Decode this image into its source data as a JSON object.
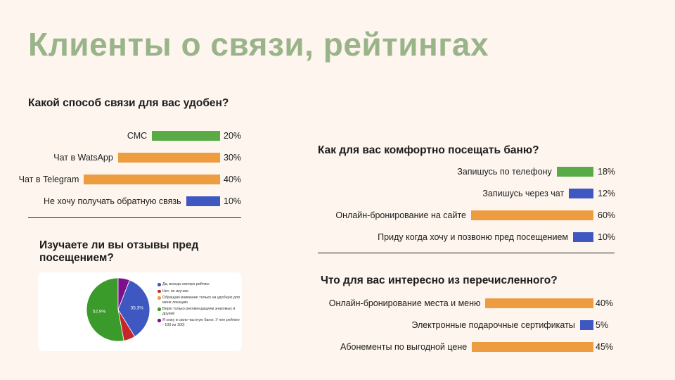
{
  "page": {
    "title": "Клиенты о связи, рейтингах"
  },
  "colors": {
    "green": "#58ab45",
    "orange": "#ed9c40",
    "blue": "#3f57c1",
    "red": "#c5262a",
    "purple": "#7c0f8c",
    "pie_green": "#3a9a2a",
    "title": "#9ab48a"
  },
  "chart_data": [
    {
      "type": "bar",
      "title": "Какой способ связи для вас удобен?",
      "categories": [
        "СМС",
        "Чат в WatsApp",
        "Чат в Telegram",
        "Не хочу получать обратную связь"
      ],
      "values": [
        20,
        30,
        40,
        10
      ],
      "value_labels": [
        "20%",
        "30%",
        "40%",
        "10%"
      ],
      "bar_colors": [
        "#58ab45",
        "#ed9c40",
        "#ed9c40",
        "#3f57c1"
      ],
      "xlim": [
        0,
        100
      ]
    },
    {
      "type": "pie",
      "title": "Изучаете ли вы отзывы пред посещением?",
      "labels": [
        "Да, всегда смотрю рейтинг",
        "Нет, не изучаю",
        "Обращаю внимание только на удобную для меня локацию",
        "Верю только рекомендациям знакомых и друзей",
        "Я хожу в свою частную баню. У нее рейтинг - 100 из 100)"
      ],
      "values": [
        35.3,
        5.9,
        0,
        52.9,
        5.9
      ],
      "slice_labels": [
        "35,3%",
        "",
        "",
        "52,9%",
        ""
      ],
      "colors": [
        "#3f57c1",
        "#c5262a",
        "#ed9c40",
        "#3a9a2a",
        "#7c0f8c"
      ],
      "legend": "right"
    },
    {
      "type": "bar",
      "title": "Как для вас комфортно посещать баню?",
      "categories": [
        "Запишусь по телефону",
        "Запишусь через чат",
        "Онлайн-бронирование на сайте",
        "Приду когда хочу и позвоню пред посещением"
      ],
      "values": [
        18,
        12,
        60,
        10
      ],
      "value_labels": [
        "18%",
        "12%",
        "60%",
        "10%"
      ],
      "bar_colors": [
        "#58ab45",
        "#3f57c1",
        "#ed9c40",
        "#3f57c1"
      ],
      "xlim": [
        0,
        100
      ]
    },
    {
      "type": "bar",
      "title": "Что для вас интересно из перечисленного?",
      "categories": [
        "Онлайн-бронирование места и  меню",
        "Электронные подарочные сертификаты",
        "Абонементы по выгодной цене"
      ],
      "values": [
        40,
        5,
        45
      ],
      "value_labels": [
        "40%",
        "5%",
        "45%"
      ],
      "bar_colors": [
        "#ed9c40",
        "#3f57c1",
        "#ed9c40"
      ],
      "xlim": [
        0,
        100
      ]
    }
  ]
}
